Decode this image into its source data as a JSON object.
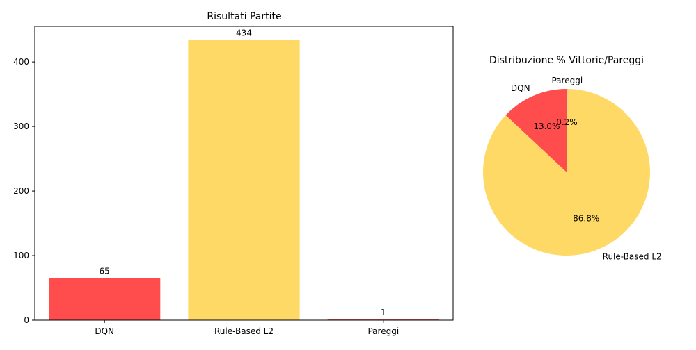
{
  "chart_data": [
    {
      "type": "bar",
      "title": "Risultati Partite",
      "categories": [
        "DQN",
        "Rule-Based L2",
        "Pareggi"
      ],
      "values": [
        65,
        434,
        1
      ],
      "value_labels": [
        "65",
        "434",
        "1"
      ],
      "colors": [
        "#ff4d4d",
        "#ffd966",
        "#ff4d4d"
      ],
      "ylim": [
        0,
        455
      ],
      "yticks": [
        0,
        100,
        200,
        300,
        400
      ],
      "xlabel": "",
      "ylabel": "",
      "grid": false
    },
    {
      "type": "pie",
      "title": "Distribuzione % Vittorie/Pareggi",
      "labels": [
        "DQN",
        "Rule-Based L2",
        "Pareggi"
      ],
      "values": [
        65,
        434,
        1
      ],
      "percent_labels": [
        "13.0%",
        "86.8%",
        "0.2%"
      ],
      "colors": [
        "#ff4d4d",
        "#ffd966",
        "#ffb3b3"
      ],
      "start_angle_deg": 90,
      "direction": "counterclockwise"
    }
  ]
}
